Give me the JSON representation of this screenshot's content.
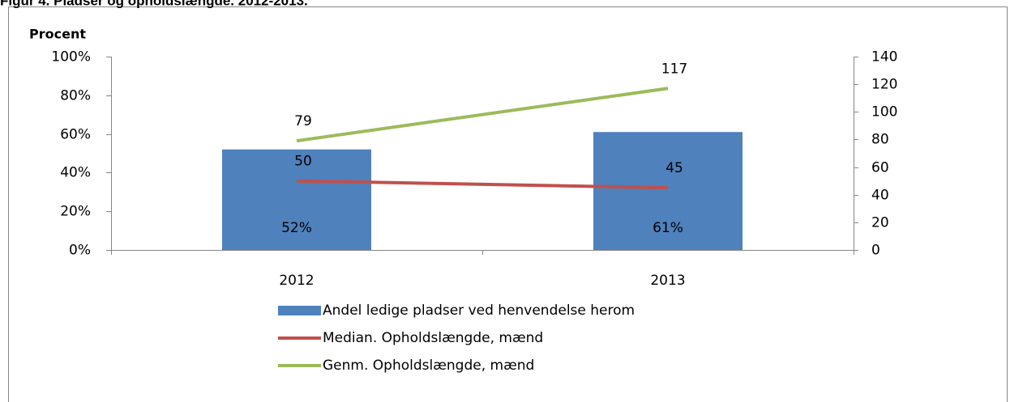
{
  "chart_data": {
    "type": "bar_line",
    "title": "Figur 4. Pladser og opholdslængde. 2012-2013.",
    "y_label": "Procent",
    "categories": [
      "2012",
      "2013"
    ],
    "series": [
      {
        "name": "Andel ledige pladser ved henvendelse herom",
        "type": "bar",
        "color": "#4f81bd",
        "values": [
          52,
          61
        ],
        "value_labels": [
          "52%",
          "61%"
        ]
      },
      {
        "name": "Median. Opholdslængde, mænd",
        "type": "line",
        "axis": "y2",
        "color": "#c0504d",
        "values": [
          50,
          45
        ]
      },
      {
        "name": "Genm. Opholdslængde, mænd",
        "type": "line",
        "axis": "y2",
        "color": "#9bbb59",
        "values": [
          79,
          117
        ]
      }
    ],
    "ylim": [
      0,
      100
    ],
    "yticks": [
      {
        "value": 0,
        "label": "0%"
      },
      {
        "value": 20,
        "label": "20%"
      },
      {
        "value": 40,
        "label": "40%"
      },
      {
        "value": 60,
        "label": "60%"
      },
      {
        "value": 80,
        "label": "80%"
      },
      {
        "value": 100,
        "label": "100%"
      }
    ],
    "y2lim": [
      0,
      140
    ],
    "y2ticks": [
      0,
      20,
      40,
      60,
      80,
      100,
      120,
      140
    ],
    "legend": "bottom"
  }
}
